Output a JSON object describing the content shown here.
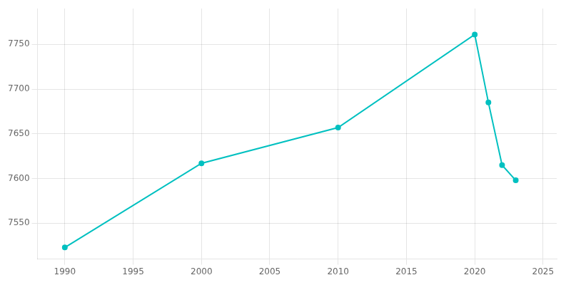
{
  "chart_data": {
    "type": "line",
    "x": [
      1990,
      2000,
      2010,
      2020,
      2021,
      2022,
      2023
    ],
    "values": [
      7523,
      7617,
      7657,
      7761,
      7685,
      7615,
      7598
    ],
    "color": "#00c0c0",
    "marker": "circle",
    "xlim": [
      1988,
      2026
    ],
    "ylim": [
      7510,
      7790
    ],
    "xticks": [
      1990,
      1995,
      2000,
      2005,
      2010,
      2015,
      2020,
      2025
    ],
    "yticks": [
      7550,
      7600,
      7650,
      7700,
      7750
    ],
    "grid": true
  }
}
